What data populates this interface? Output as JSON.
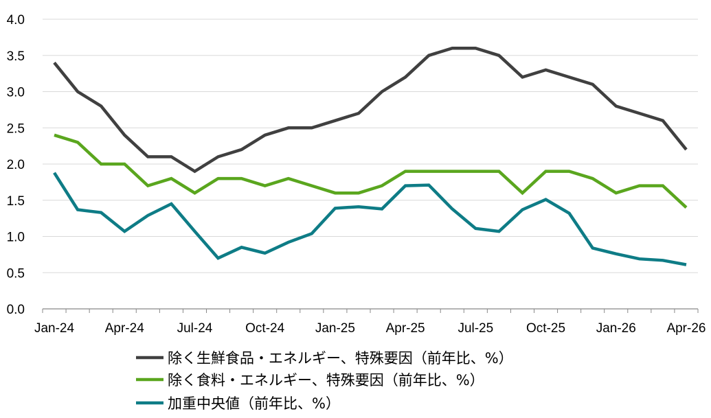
{
  "chart_data": {
    "type": "line",
    "title": "",
    "xlabel": "",
    "ylabel": "",
    "ylim": [
      0,
      4
    ],
    "yticks": [
      "0.0",
      "0.5",
      "1.0",
      "1.5",
      "2.0",
      "2.5",
      "3.0",
      "3.5",
      "4.0"
    ],
    "x": [
      "Jan-24",
      "Feb-24",
      "Mar-24",
      "Apr-24",
      "May-24",
      "Jun-24",
      "Jul-24",
      "Aug-24",
      "Sep-24",
      "Oct-24",
      "Nov-24",
      "Dec-24",
      "Jan-25",
      "Feb-25",
      "Mar-25",
      "Apr-25",
      "May-25",
      "Jun-25",
      "Jul-25",
      "Aug-25",
      "Sep-25",
      "Oct-25",
      "Nov-25",
      "Dec-25",
      "Jan-26",
      "Feb-26",
      "Mar-26",
      "Apr-26"
    ],
    "xtick_labels": [
      "Jan-24",
      "Apr-24",
      "Jul-24",
      "Oct-24",
      "Jan-25",
      "Apr-25",
      "Jul-25",
      "Oct-25",
      "Jan-26",
      "Apr-26"
    ],
    "grid": true,
    "legend_position": "bottom",
    "series": [
      {
        "name": "除く生鮮食品・エネルギー、特殊要因（前年比、%）",
        "color": "#404040",
        "values": [
          3.4,
          3.0,
          2.8,
          2.4,
          2.1,
          2.1,
          1.9,
          2.1,
          2.2,
          2.4,
          2.5,
          2.5,
          2.6,
          2.7,
          3.0,
          3.2,
          3.5,
          3.6,
          3.6,
          3.5,
          3.2,
          3.3,
          3.2,
          3.1,
          2.8,
          2.7,
          2.6,
          2.2
        ]
      },
      {
        "name": "除く食料・エネルギー、特殊要因（前年比、%）",
        "color": "#5aa61e",
        "values": [
          2.4,
          2.3,
          2.0,
          2.0,
          1.7,
          1.8,
          1.6,
          1.8,
          1.8,
          1.7,
          1.8,
          1.7,
          1.6,
          1.6,
          1.7,
          1.9,
          1.9,
          1.9,
          1.9,
          1.9,
          1.6,
          1.9,
          1.9,
          1.8,
          1.6,
          1.7,
          1.7,
          1.4
        ]
      },
      {
        "name": "加重中央値（前年比、%）",
        "color": "#0e7c86",
        "values": [
          1.88,
          1.37,
          1.33,
          1.07,
          1.29,
          1.45,
          1.07,
          0.7,
          0.85,
          0.77,
          0.92,
          1.04,
          1.39,
          1.41,
          1.38,
          1.7,
          1.71,
          1.38,
          1.11,
          1.07,
          1.37,
          1.51,
          1.32,
          0.84,
          0.76,
          0.69,
          0.67,
          0.61
        ]
      }
    ]
  }
}
